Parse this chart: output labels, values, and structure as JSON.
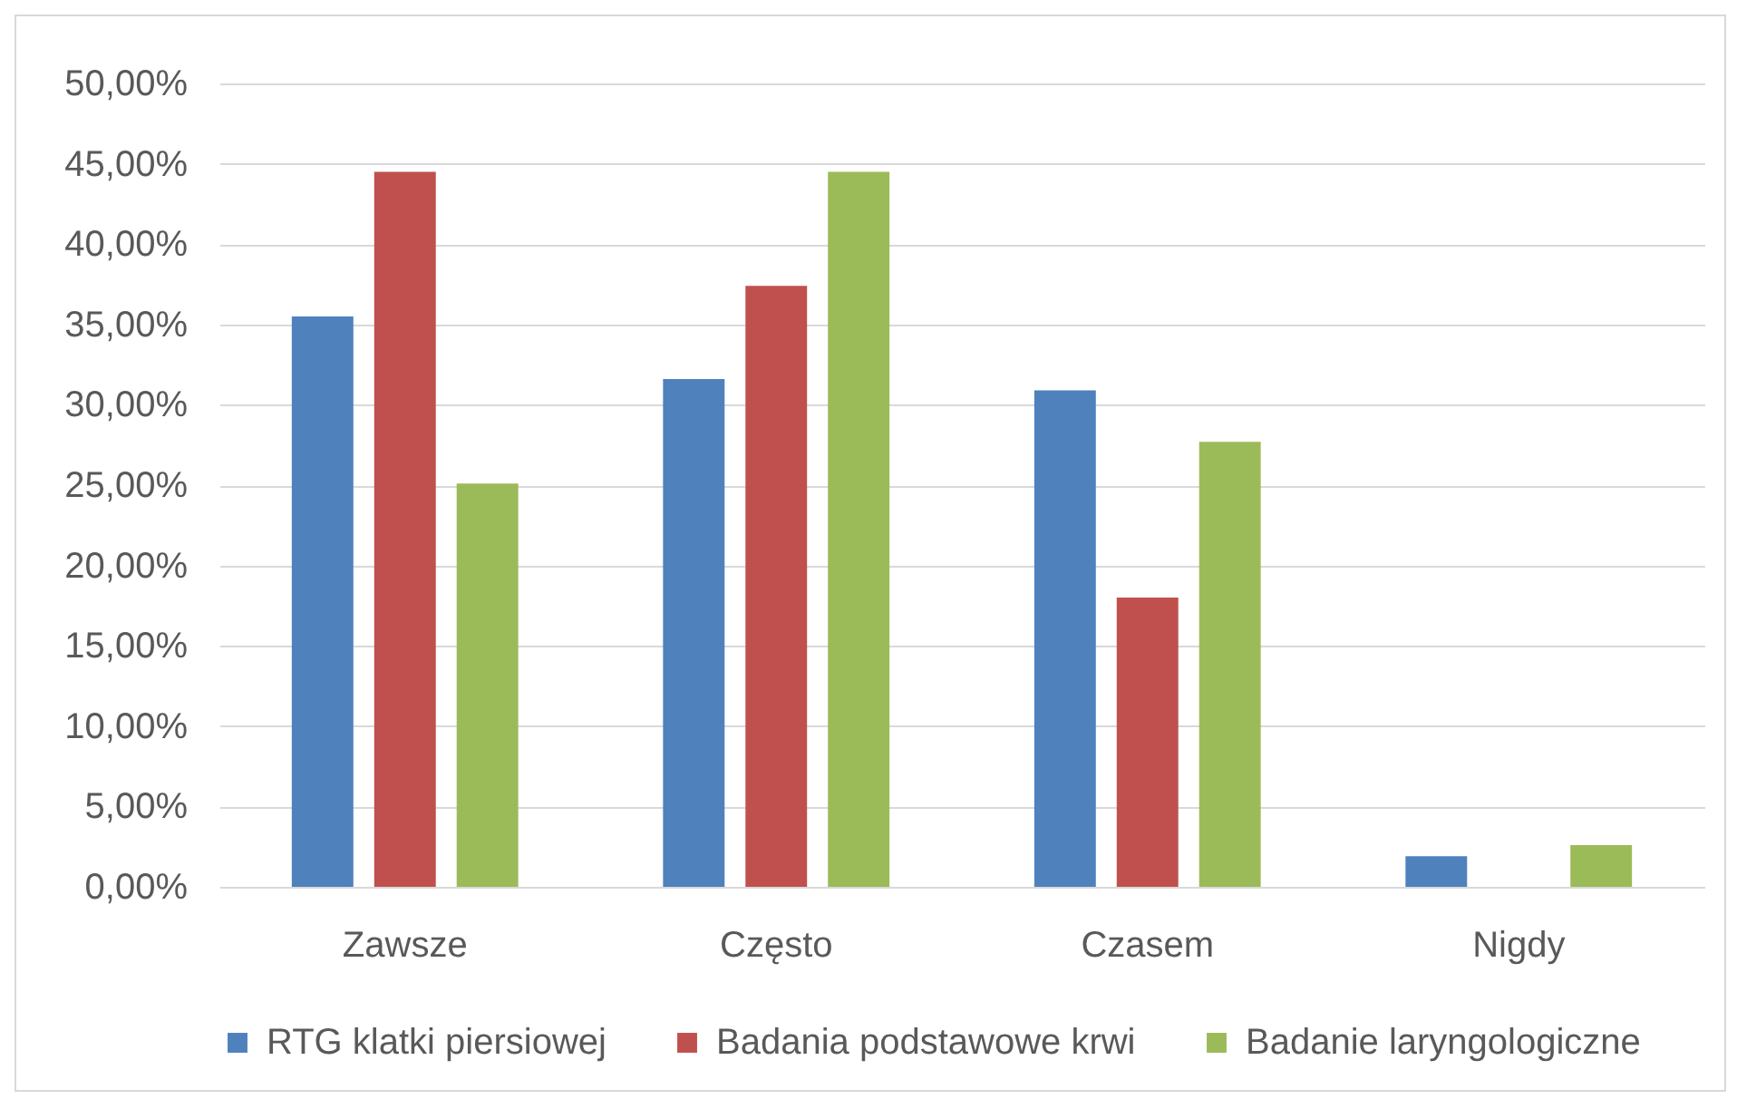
{
  "chart_data": {
    "type": "bar",
    "categories": [
      "Zawsze",
      "Często",
      "Czasem",
      "Nigdy"
    ],
    "series": [
      {
        "name": "RTG klatki piersiowej",
        "color": "#4f81bd",
        "values": [
          35.5,
          31.6,
          30.9,
          1.9
        ]
      },
      {
        "name": "Badania podstawowe krwi",
        "color": "#c0504d",
        "values": [
          44.5,
          37.4,
          18.0,
          0
        ]
      },
      {
        "name": "Badanie laryngologiczne",
        "color": "#9bbb59",
        "values": [
          25.1,
          44.5,
          27.7,
          2.6
        ]
      }
    ],
    "ylim": [
      0,
      50
    ],
    "yticks": [
      {
        "value": 0,
        "label": "0,00%"
      },
      {
        "value": 5,
        "label": "5,00%"
      },
      {
        "value": 10,
        "label": "10,00%"
      },
      {
        "value": 15,
        "label": "15,00%"
      },
      {
        "value": 20,
        "label": "20,00%"
      },
      {
        "value": 25,
        "label": "25,00%"
      },
      {
        "value": 30,
        "label": "30,00%"
      },
      {
        "value": 35,
        "label": "35,00%"
      },
      {
        "value": 40,
        "label": "40,00%"
      },
      {
        "value": 45,
        "label": "45,00%"
      },
      {
        "value": 50,
        "label": "50,00%"
      }
    ],
    "grid": true,
    "legend": "bottom"
  }
}
